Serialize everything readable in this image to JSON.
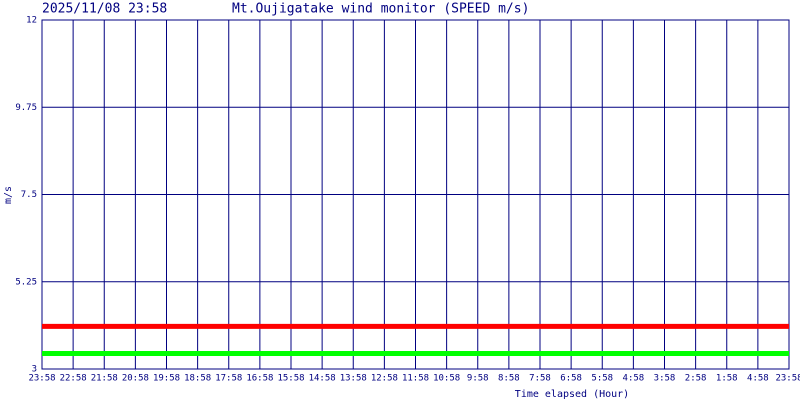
{
  "chart_data": {
    "type": "line",
    "title": "Mt.Oujigatake wind monitor (SPEED m/s)",
    "timestamp": "2025/11/08 23:58",
    "y_label": "m/s",
    "x_label": "Time elapsed (Hour)",
    "categories": [
      "23:58",
      "22:58",
      "21:58",
      "20:58",
      "19:58",
      "18:58",
      "17:58",
      "16:58",
      "15:58",
      "14:58",
      "13:58",
      "12:58",
      "11:58",
      "10:58",
      "9:58",
      "8:58",
      "7:58",
      "6:58",
      "5:58",
      "4:58",
      "3:58",
      "2:58",
      "1:58",
      "4:58",
      "23:58"
    ],
    "series": [
      {
        "color": "#ff0000",
        "values": [
          4.1,
          4.1,
          4.1,
          4.1,
          4.1,
          4.1,
          4.1,
          4.1,
          4.1,
          4.1,
          4.1,
          4.1,
          4.1,
          4.1,
          4.1,
          4.1,
          4.1,
          4.1,
          4.1,
          4.1,
          4.1,
          4.1,
          4.1,
          4.1,
          4.1
        ]
      },
      {
        "color": "#00ff00",
        "values": [
          3.4,
          3.4,
          3.4,
          3.4,
          3.4,
          3.4,
          3.4,
          3.4,
          3.4,
          3.4,
          3.4,
          3.4,
          3.4,
          3.4,
          3.4,
          3.4,
          3.4,
          3.4,
          3.4,
          3.4,
          3.4,
          3.4,
          3.4,
          3.4,
          3.4
        ]
      }
    ],
    "ylim": [
      3,
      12
    ],
    "yticks": [
      3,
      5.25,
      7.5,
      9.75,
      12
    ],
    "grid": true,
    "grid_color": "#000080"
  }
}
